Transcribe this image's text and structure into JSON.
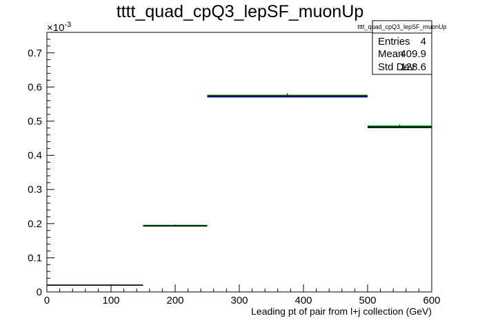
{
  "chart_data": {
    "type": "histogram",
    "title": "tttt_quad_cpQ3_lepSF_muonUp",
    "xlabel": "Leading pt of pair from l+j collection (GeV)",
    "ylabel": "",
    "y_exponent_label": "×10",
    "y_exponent_power": "-3",
    "xlim": [
      0,
      600
    ],
    "ylim": [
      0,
      0.76
    ],
    "x_ticks": [
      0,
      100,
      200,
      300,
      400,
      500,
      600
    ],
    "x_tick_labels": [
      "0",
      "100",
      "200",
      "300",
      "400",
      "500",
      "600"
    ],
    "y_ticks": [
      0,
      0.1,
      0.2,
      0.3,
      0.4,
      0.5,
      0.6,
      0.7
    ],
    "y_tick_labels": [
      "0",
      "0.1",
      "0.2",
      "0.3",
      "0.4",
      "0.5",
      "0.6",
      "0.7"
    ],
    "bin_edges": [
      0,
      150,
      250,
      500,
      600
    ],
    "series": [
      {
        "values": [
          0.02,
          0.193,
          0.571,
          0.481
        ],
        "color": "#000099"
      },
      {
        "values": [
          0.02,
          0.195,
          0.576,
          0.486
        ],
        "color": "#00cc00"
      },
      {
        "values": [
          0.02,
          0.194,
          0.574,
          0.484
        ],
        "color": "#000000"
      }
    ],
    "markers": [
      {
        "x": 200,
        "y": 0.194
      },
      {
        "x": 375,
        "y": 0.579
      },
      {
        "x": 550,
        "y": 0.487
      }
    ],
    "stats_box": {
      "title": "tttt_quad_cpQ3_lepSF_muonUp",
      "rows": [
        {
          "label": "Entries",
          "value": "4"
        },
        {
          "label": "Mean",
          "value": "409.9"
        },
        {
          "label": "Std Dev",
          "value": "128.6"
        }
      ]
    },
    "grid": false
  }
}
